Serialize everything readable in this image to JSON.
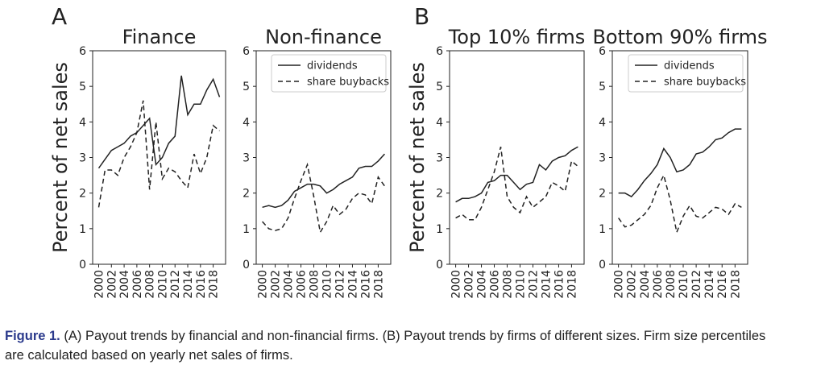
{
  "panels": [
    "A",
    "B"
  ],
  "caption": {
    "label": "Figure 1.",
    "lines": [
      "(A) Payout trends by financial and non-financial firms. (B) Payout trends by firms of different sizes. Firm size percentiles",
      "are calculated based on yearly net sales of firms."
    ]
  },
  "chart_data": [
    {
      "type": "line",
      "title": "Finance",
      "ylabel": "Percent of net sales",
      "x": [
        2000,
        2001,
        2002,
        2003,
        2004,
        2005,
        2006,
        2007,
        2008,
        2009,
        2010,
        2011,
        2012,
        2013,
        2014,
        2015,
        2016,
        2017,
        2018,
        2019
      ],
      "series": [
        {
          "name": "dividends",
          "color": "#222222",
          "dash": "solid",
          "values": [
            2.7,
            2.95,
            3.2,
            3.3,
            3.4,
            3.6,
            3.7,
            3.9,
            4.1,
            2.8,
            3.0,
            3.4,
            3.6,
            5.3,
            4.2,
            4.5,
            4.5,
            4.9,
            5.2,
            4.7
          ]
        },
        {
          "name": "share buybacks",
          "color": "#222222",
          "dash": "dashed",
          "values": [
            1.6,
            2.65,
            2.65,
            2.5,
            3.0,
            3.3,
            3.7,
            4.6,
            2.1,
            4.0,
            2.4,
            2.7,
            2.6,
            2.35,
            2.15,
            3.1,
            2.55,
            3.0,
            3.9,
            3.75
          ]
        }
      ],
      "xlim": [
        1999.05,
        2019.95
      ],
      "xticks": [
        2000,
        2002,
        2004,
        2006,
        2008,
        2010,
        2012,
        2014,
        2016,
        2018
      ],
      "ylim": [
        0,
        6
      ],
      "yticks": [
        0,
        1,
        2,
        3,
        4,
        5,
        6
      ]
    },
    {
      "type": "line",
      "title": "Non-finance",
      "legend": "upper right",
      "x": [
        2000,
        2001,
        2002,
        2003,
        2004,
        2005,
        2006,
        2007,
        2008,
        2009,
        2010,
        2011,
        2012,
        2013,
        2014,
        2015,
        2016,
        2017,
        2018,
        2019
      ],
      "series": [
        {
          "name": "dividends",
          "color": "#222222",
          "dash": "solid",
          "values": [
            1.6,
            1.65,
            1.6,
            1.65,
            1.8,
            2.05,
            2.15,
            2.25,
            2.25,
            2.2,
            2.0,
            2.1,
            2.25,
            2.35,
            2.45,
            2.7,
            2.75,
            2.75,
            2.9,
            3.1
          ]
        },
        {
          "name": "share buybacks",
          "color": "#222222",
          "dash": "dashed",
          "values": [
            1.2,
            1.0,
            0.95,
            1.0,
            1.3,
            1.85,
            2.35,
            2.8,
            1.9,
            0.9,
            1.2,
            1.65,
            1.4,
            1.55,
            1.85,
            2.0,
            1.95,
            1.7,
            2.45,
            2.2
          ]
        }
      ],
      "xlim": [
        1999.05,
        2019.95
      ],
      "xticks": [
        2000,
        2002,
        2004,
        2006,
        2008,
        2010,
        2012,
        2014,
        2016,
        2018
      ],
      "ylim": [
        0,
        6
      ],
      "yticks": [
        0,
        1,
        2,
        3,
        4,
        5,
        6
      ]
    },
    {
      "type": "line",
      "title": "Top 10% firms",
      "ylabel": "Percent of net sales",
      "x": [
        2000,
        2001,
        2002,
        2003,
        2004,
        2005,
        2006,
        2007,
        2008,
        2009,
        2010,
        2011,
        2012,
        2013,
        2014,
        2015,
        2016,
        2017,
        2018,
        2019
      ],
      "series": [
        {
          "name": "dividends",
          "color": "#222222",
          "dash": "solid",
          "values": [
            1.75,
            1.85,
            1.85,
            1.9,
            2.0,
            2.3,
            2.35,
            2.5,
            2.5,
            2.3,
            2.1,
            2.25,
            2.3,
            2.8,
            2.65,
            2.9,
            3.0,
            3.05,
            3.2,
            3.3
          ]
        },
        {
          "name": "share buybacks",
          "color": "#222222",
          "dash": "dashed",
          "values": [
            1.3,
            1.4,
            1.25,
            1.25,
            1.6,
            2.1,
            2.6,
            3.3,
            1.9,
            1.6,
            1.45,
            1.9,
            1.6,
            1.75,
            1.9,
            2.3,
            2.2,
            2.05,
            2.9,
            2.75
          ]
        }
      ],
      "xlim": [
        1999.05,
        2019.95
      ],
      "xticks": [
        2000,
        2002,
        2004,
        2006,
        2008,
        2010,
        2012,
        2014,
        2016,
        2018
      ],
      "ylim": [
        0,
        6
      ],
      "yticks": [
        0,
        1,
        2,
        3,
        4,
        5,
        6
      ]
    },
    {
      "type": "line",
      "title": "Bottom 90% firms",
      "legend": "upper right",
      "x": [
        2000,
        2001,
        2002,
        2003,
        2004,
        2005,
        2006,
        2007,
        2008,
        2009,
        2010,
        2011,
        2012,
        2013,
        2014,
        2015,
        2016,
        2017,
        2018,
        2019
      ],
      "series": [
        {
          "name": "dividends",
          "color": "#222222",
          "dash": "solid",
          "values": [
            2.0,
            2.0,
            1.9,
            2.1,
            2.35,
            2.55,
            2.8,
            3.25,
            3.0,
            2.6,
            2.65,
            2.8,
            3.1,
            3.15,
            3.3,
            3.5,
            3.55,
            3.7,
            3.8,
            3.8
          ]
        },
        {
          "name": "share buybacks",
          "color": "#222222",
          "dash": "dashed",
          "values": [
            1.3,
            1.05,
            1.1,
            1.25,
            1.4,
            1.65,
            2.15,
            2.5,
            1.8,
            0.9,
            1.35,
            1.65,
            1.35,
            1.3,
            1.45,
            1.6,
            1.55,
            1.4,
            1.7,
            1.6
          ]
        }
      ],
      "xlim": [
        1999.05,
        2019.95
      ],
      "xticks": [
        2000,
        2002,
        2004,
        2006,
        2008,
        2010,
        2012,
        2014,
        2016,
        2018
      ],
      "ylim": [
        0,
        6
      ],
      "yticks": [
        0,
        1,
        2,
        3,
        4,
        5,
        6
      ]
    }
  ]
}
